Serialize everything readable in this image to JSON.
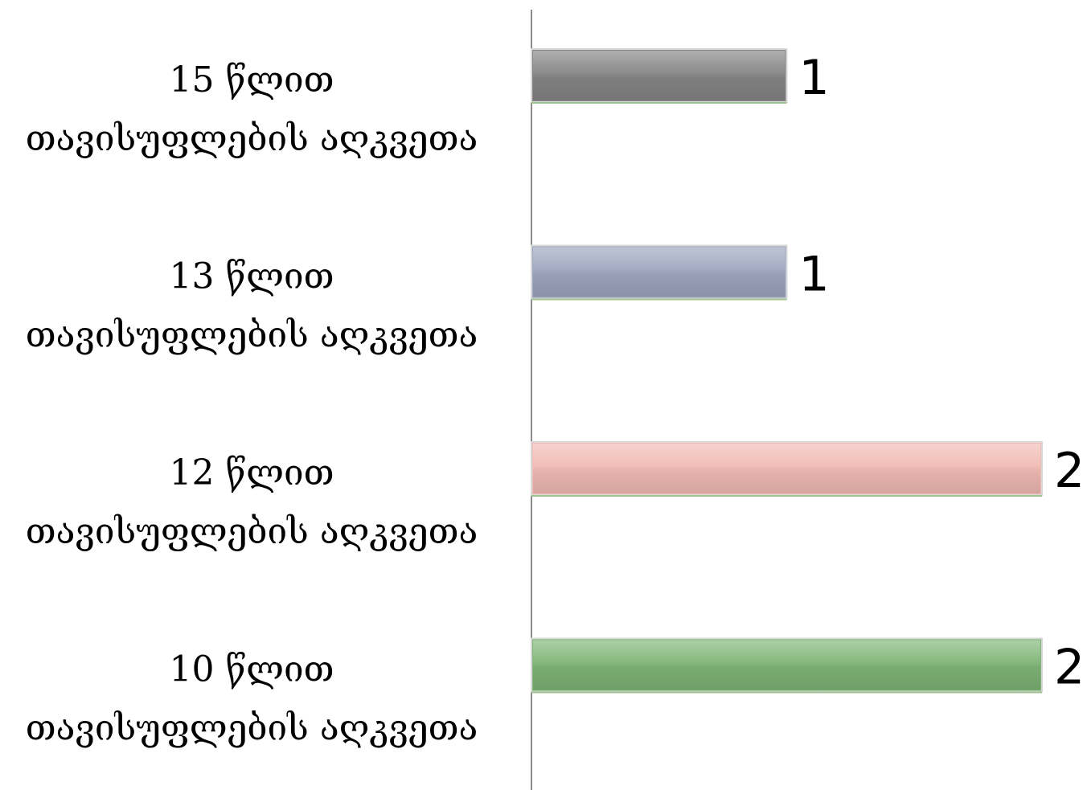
{
  "chart_data": {
    "type": "bar",
    "orientation": "horizontal",
    "categories": [
      [
        "15 წლით",
        "თავისუფლების აღკვეთა"
      ],
      [
        "13 წლით",
        "თავისუფლების აღკვეთა"
      ],
      [
        "12 წლით",
        "თავისუფლების აღკვეთა"
      ],
      [
        "10 წლით",
        "თავისუფლების აღკვეთა"
      ]
    ],
    "values": [
      1,
      1,
      2,
      2
    ],
    "data_labels": [
      "1",
      "1",
      "2",
      "2"
    ],
    "bar_colors": [
      "#858585",
      "#9fa6bf",
      "#f2bbb4",
      "#7fb576"
    ],
    "xlim": [
      0,
      2
    ],
    "grid": false,
    "legend": "none",
    "title": "",
    "xlabel": "",
    "ylabel": ""
  }
}
